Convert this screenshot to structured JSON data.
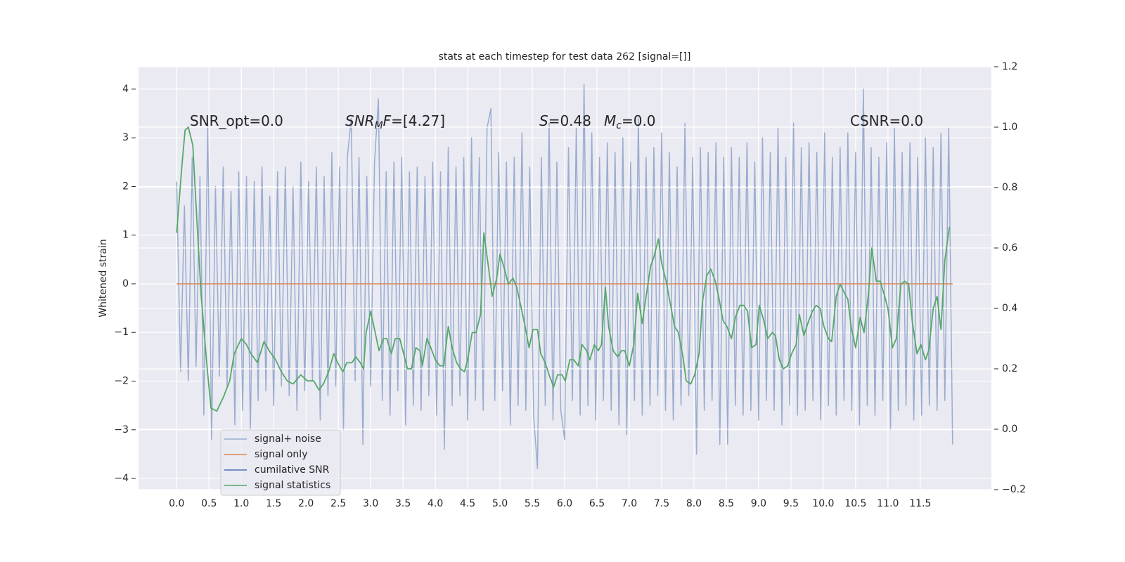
{
  "chart_data": {
    "type": "line",
    "title": "stats at each timestep for test data 262 [signal=[]]",
    "ylabel": "Whitened strain",
    "grid": true,
    "legend": "lower left",
    "xlim": [
      -0.59,
      12.6
    ],
    "ylim": [
      -4.23,
      4.46
    ],
    "y2lim": [
      -0.2,
      1.2
    ],
    "xticks": [
      {
        "value": 0,
        "label": "0.0"
      },
      {
        "value": 0.5,
        "label": "0.5"
      },
      {
        "value": 1,
        "label": "1.0"
      },
      {
        "value": 1.5,
        "label": "1.5"
      },
      {
        "value": 2,
        "label": "2.0"
      },
      {
        "value": 2.5,
        "label": "2.5"
      },
      {
        "value": 3,
        "label": "3.0"
      },
      {
        "value": 3.5,
        "label": "3.5"
      },
      {
        "value": 4,
        "label": "4.0"
      },
      {
        "value": 4.5,
        "label": "4.5"
      },
      {
        "value": 5,
        "label": "5.0"
      },
      {
        "value": 5.5,
        "label": "5.5"
      },
      {
        "value": 6,
        "label": "6.0"
      },
      {
        "value": 6.5,
        "label": "6.5"
      },
      {
        "value": 7,
        "label": "7.0"
      },
      {
        "value": 7.5,
        "label": "7.5"
      },
      {
        "value": 8,
        "label": "8.0"
      },
      {
        "value": 8.5,
        "label": "8.5"
      },
      {
        "value": 9,
        "label": "9.0"
      },
      {
        "value": 9.5,
        "label": "9.5"
      },
      {
        "value": 10,
        "label": "10.0"
      },
      {
        "value": 10.5,
        "label": "10.5"
      },
      {
        "value": 11,
        "label": "11.0"
      },
      {
        "value": 11.5,
        "label": "11.5"
      }
    ],
    "yticks": [
      {
        "value": -4,
        "label": "−4"
      },
      {
        "value": -3,
        "label": "−3"
      },
      {
        "value": -2,
        "label": "−2"
      },
      {
        "value": -1,
        "label": "−1"
      },
      0,
      1,
      2,
      3,
      4
    ],
    "y2ticks": [
      {
        "value": -0.2,
        "label": "−0.2"
      },
      {
        "value": 0,
        "label": "0.0"
      },
      0.2,
      0.4,
      0.6,
      0.8,
      {
        "value": 1,
        "label": "1.0"
      },
      1.2
    ],
    "annotations": [
      {
        "parts": [
          {
            "text": "SNR_opt=0.0"
          }
        ]
      },
      {
        "parts": [
          {
            "text": "SNR",
            "italic": true
          },
          {
            "text": "M",
            "italic": true,
            "sub": true
          },
          {
            "text": "F",
            "italic": true
          },
          {
            "text": "=[4.27]"
          }
        ]
      },
      {
        "parts": [
          {
            "text": "S",
            "italic": true
          },
          {
            "text": "=0.48"
          }
        ]
      },
      {
        "parts": [
          {
            "text": "M",
            "italic": true
          },
          {
            "text": "c",
            "italic": true,
            "sub": true
          },
          {
            "text": "=0.0"
          }
        ]
      },
      {
        "parts": [
          {
            "text": "CSNR=0.0"
          }
        ]
      }
    ],
    "x": [
      0,
      0.06,
      0.12,
      0.18,
      0.24,
      0.3,
      0.36,
      0.42,
      0.48,
      0.54,
      0.6,
      0.66,
      0.72,
      0.78,
      0.84,
      0.9,
      0.96,
      1.02,
      1.08,
      1.14,
      1.2,
      1.26,
      1.32,
      1.38,
      1.44,
      1.5,
      1.56,
      1.62,
      1.68,
      1.74,
      1.8,
      1.86,
      1.92,
      1.98,
      2.04,
      2.1,
      2.16,
      2.22,
      2.28,
      2.34,
      2.4,
      2.46,
      2.52,
      2.58,
      2.64,
      2.7,
      2.76,
      2.82,
      2.88,
      2.94,
      3.0,
      3.06,
      3.12,
      3.18,
      3.24,
      3.3,
      3.36,
      3.42,
      3.48,
      3.54,
      3.6,
      3.66,
      3.72,
      3.78,
      3.84,
      3.9,
      3.96,
      4.02,
      4.08,
      4.14,
      4.2,
      4.26,
      4.32,
      4.38,
      4.44,
      4.5,
      4.56,
      4.62,
      4.68,
      4.74,
      4.8,
      4.86,
      4.92,
      4.98,
      5.04,
      5.1,
      5.16,
      5.22,
      5.28,
      5.34,
      5.4,
      5.46,
      5.52,
      5.58,
      5.64,
      5.7,
      5.76,
      5.82,
      5.88,
      5.94,
      6.0,
      6.06,
      6.12,
      6.18,
      6.24,
      6.3,
      6.36,
      6.42,
      6.48,
      6.54,
      6.6,
      6.66,
      6.72,
      6.78,
      6.84,
      6.9,
      6.96,
      7.02,
      7.08,
      7.14,
      7.2,
      7.26,
      7.32,
      7.38,
      7.44,
      7.5,
      7.56,
      7.62,
      7.68,
      7.74,
      7.8,
      7.86,
      7.92,
      7.98,
      8.04,
      8.1,
      8.16,
      8.22,
      8.28,
      8.34,
      8.4,
      8.46,
      8.52,
      8.58,
      8.64,
      8.7,
      8.76,
      8.82,
      8.88,
      8.94,
      9.0,
      9.06,
      9.12,
      9.18,
      9.24,
      9.3,
      9.36,
      9.42,
      9.48,
      9.54,
      9.6,
      9.66,
      9.72,
      9.78,
      9.84,
      9.9,
      9.96,
      10.02,
      10.08,
      10.14,
      10.2,
      10.26,
      10.32,
      10.38,
      10.44,
      10.5,
      10.56,
      10.62,
      10.68,
      10.74,
      10.8,
      10.86,
      10.92,
      10.98,
      11.04,
      11.1,
      11.16,
      11.22,
      11.28,
      11.34,
      11.4,
      11.46,
      11.52,
      11.58,
      11.64,
      11.7,
      11.76,
      11.82,
      11.88,
      11.94,
      12.0
    ],
    "series": [
      {
        "name": "signal+ noise",
        "color": "#9aaccf",
        "values": [
          2.1,
          -1.8,
          1.6,
          -2.0,
          2.6,
          -1.7,
          2.2,
          -2.7,
          3.3,
          -3.2,
          2.0,
          -1.9,
          2.4,
          -2.1,
          1.9,
          -2.9,
          2.3,
          -2.6,
          2.2,
          -3.0,
          2.1,
          -2.4,
          2.4,
          -2.2,
          1.8,
          -2.5,
          2.3,
          -2.1,
          2.4,
          -2.3,
          2.0,
          -2.6,
          2.5,
          -2.2,
          2.1,
          -2.0,
          2.4,
          -2.8,
          2.2,
          -2.3,
          2.7,
          -2.1,
          2.4,
          -3.0,
          2.6,
          3.4,
          -2.0,
          2.6,
          -3.3,
          2.2,
          -2.1,
          2.5,
          3.8,
          -2.4,
          2.3,
          -2.7,
          2.5,
          -2.2,
          2.6,
          -2.9,
          2.3,
          -2.5,
          2.4,
          -2.6,
          2.2,
          -2.3,
          2.5,
          -2.7,
          2.3,
          -3.4,
          2.8,
          -2.5,
          2.4,
          -2.3,
          2.6,
          -2.8,
          3.0,
          -2.4,
          2.6,
          -2.6,
          3.2,
          3.6,
          -2.4,
          2.7,
          -2.2,
          2.5,
          -2.9,
          2.6,
          -2.5,
          3.1,
          -2.6,
          2.4,
          -2.7,
          -3.8,
          2.6,
          -2.5,
          3.3,
          -2.8,
          2.5,
          -2.6,
          -3.2,
          2.8,
          -2.4,
          3.2,
          -2.7,
          4.1,
          -2.5,
          3.1,
          -2.8,
          2.6,
          -2.4,
          2.9,
          -2.6,
          2.7,
          -2.9,
          3.0,
          -3.1,
          2.5,
          -2.4,
          3.4,
          -2.7,
          2.6,
          -2.5,
          2.8,
          -2.3,
          3.1,
          -2.6,
          2.7,
          -2.8,
          2.4,
          -2.5,
          3.3,
          -2.3,
          2.6,
          -3.5,
          2.8,
          -2.6,
          2.7,
          -2.4,
          2.9,
          -3.3,
          2.6,
          -3.3,
          2.8,
          -2.5,
          2.6,
          -2.7,
          2.9,
          -2.6,
          2.5,
          -2.8,
          3.0,
          -2.4,
          2.7,
          -2.6,
          3.2,
          -2.9,
          2.6,
          -2.5,
          3.3,
          -2.7,
          2.8,
          -2.6,
          2.9,
          -2.4,
          2.7,
          -2.8,
          3.1,
          -2.5,
          2.6,
          -2.7,
          2.8,
          -2.4,
          3.1,
          -2.6,
          2.7,
          -2.9,
          4.0,
          -2.5,
          2.8,
          -2.7,
          2.6,
          -2.4,
          2.9,
          -3.0,
          3.2,
          -2.6,
          2.7,
          -2.5,
          2.9,
          -2.8,
          2.6,
          -2.7,
          3.0,
          -2.5,
          2.8,
          -2.6,
          3.1,
          -2.4,
          3.2,
          -3.3
        ]
      },
      {
        "name": "signal only",
        "color": "#dd8452",
        "x": [
          0,
          12.0
        ],
        "values": [
          0,
          0
        ]
      },
      {
        "name": "cumilative SNR",
        "color": "#4c72b0"
      },
      {
        "name": "signal statistics",
        "color": "#55a868",
        "axis": "y2",
        "x": [
          0,
          0.08,
          0.13,
          0.18,
          0.25,
          0.3,
          0.38,
          0.46,
          0.53,
          0.62,
          0.73,
          0.82,
          0.89,
          1.0,
          1.08,
          1.15,
          1.25,
          1.35,
          1.43,
          1.53,
          1.62,
          1.71,
          1.8,
          1.92,
          2.02,
          2.12,
          2.2,
          2.27,
          2.35,
          2.43,
          2.49,
          2.57,
          2.63,
          2.71,
          2.77,
          2.84,
          2.89,
          2.93,
          3.0,
          3.07,
          3.13,
          3.2,
          3.25,
          3.32,
          3.38,
          3.45,
          3.51,
          3.57,
          3.63,
          3.7,
          3.76,
          3.8,
          3.87,
          3.93,
          4.0,
          4.07,
          4.13,
          4.2,
          4.26,
          4.33,
          4.39,
          4.45,
          4.5,
          4.57,
          4.63,
          4.7,
          4.75,
          4.82,
          4.88,
          4.95,
          5.0,
          5.07,
          5.13,
          5.2,
          5.26,
          5.33,
          5.38,
          5.45,
          5.51,
          5.58,
          5.63,
          5.7,
          5.76,
          5.83,
          5.89,
          5.96,
          6.01,
          6.08,
          6.14,
          6.21,
          6.27,
          6.34,
          6.39,
          6.46,
          6.52,
          6.57,
          6.63,
          6.68,
          6.75,
          6.82,
          6.88,
          6.93,
          7.0,
          7.07,
          7.13,
          7.2,
          7.26,
          7.33,
          7.38,
          7.45,
          7.5,
          7.57,
          7.63,
          7.7,
          7.76,
          7.83,
          7.88,
          7.95,
          8.01,
          8.08,
          8.13,
          8.2,
          8.26,
          8.33,
          8.39,
          8.45,
          8.51,
          8.58,
          8.64,
          8.71,
          8.77,
          8.83,
          8.89,
          8.96,
          9.01,
          9.08,
          9.14,
          9.21,
          9.26,
          9.32,
          9.38,
          9.45,
          9.51,
          9.58,
          9.63,
          9.7,
          9.76,
          9.83,
          9.89,
          9.95,
          10.01,
          10.08,
          10.13,
          10.2,
          10.26,
          10.33,
          10.38,
          10.43,
          10.5,
          10.57,
          10.63,
          10.7,
          10.75,
          10.82,
          10.88,
          10.95,
          11.0,
          11.07,
          11.13,
          11.2,
          11.26,
          11.32,
          11.38,
          11.45,
          11.51,
          11.58,
          11.63,
          11.7,
          11.76,
          11.82,
          11.88,
          11.95
        ],
        "values": [
          0.65,
          0.87,
          0.99,
          1.0,
          0.94,
          0.74,
          0.44,
          0.23,
          0.07,
          0.06,
          0.11,
          0.16,
          0.25,
          0.3,
          0.28,
          0.25,
          0.22,
          0.29,
          0.26,
          0.23,
          0.19,
          0.16,
          0.15,
          0.18,
          0.16,
          0.16,
          0.13,
          0.15,
          0.19,
          0.25,
          0.22,
          0.19,
          0.22,
          0.22,
          0.24,
          0.22,
          0.2,
          0.32,
          0.39,
          0.32,
          0.26,
          0.3,
          0.3,
          0.25,
          0.3,
          0.3,
          0.25,
          0.2,
          0.2,
          0.27,
          0.26,
          0.21,
          0.3,
          0.27,
          0.23,
          0.21,
          0.21,
          0.34,
          0.27,
          0.22,
          0.2,
          0.19,
          0.23,
          0.32,
          0.32,
          0.38,
          0.65,
          0.54,
          0.44,
          0.5,
          0.58,
          0.53,
          0.48,
          0.5,
          0.47,
          0.4,
          0.35,
          0.27,
          0.33,
          0.33,
          0.25,
          0.22,
          0.18,
          0.14,
          0.18,
          0.18,
          0.16,
          0.23,
          0.23,
          0.21,
          0.28,
          0.26,
          0.23,
          0.28,
          0.26,
          0.28,
          0.47,
          0.34,
          0.26,
          0.24,
          0.26,
          0.26,
          0.21,
          0.28,
          0.45,
          0.35,
          0.44,
          0.54,
          0.57,
          0.63,
          0.55,
          0.49,
          0.42,
          0.34,
          0.32,
          0.24,
          0.16,
          0.15,
          0.18,
          0.25,
          0.42,
          0.51,
          0.53,
          0.49,
          0.43,
          0.36,
          0.34,
          0.3,
          0.37,
          0.41,
          0.41,
          0.39,
          0.27,
          0.28,
          0.41,
          0.36,
          0.3,
          0.32,
          0.31,
          0.23,
          0.2,
          0.21,
          0.25,
          0.28,
          0.38,
          0.31,
          0.35,
          0.39,
          0.41,
          0.4,
          0.34,
          0.3,
          0.29,
          0.44,
          0.48,
          0.45,
          0.43,
          0.34,
          0.27,
          0.37,
          0.32,
          0.45,
          0.6,
          0.49,
          0.49,
          0.44,
          0.4,
          0.27,
          0.3,
          0.48,
          0.49,
          0.48,
          0.35,
          0.25,
          0.28,
          0.23,
          0.26,
          0.4,
          0.44,
          0.33,
          0.56,
          0.67
        ]
      }
    ]
  }
}
